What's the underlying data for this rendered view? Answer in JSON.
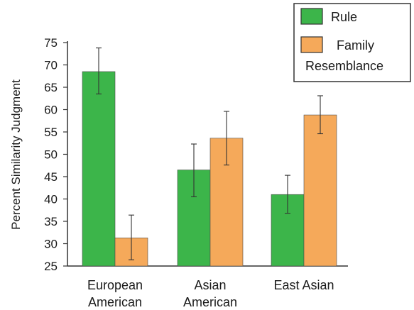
{
  "chart_data": {
    "type": "bar",
    "title": "",
    "xlabel": "",
    "ylabel": "Percent Similarity Judgment",
    "ylim": [
      25,
      75
    ],
    "yticks": [
      25,
      30,
      35,
      40,
      45,
      50,
      55,
      60,
      65,
      70,
      75
    ],
    "categories": [
      [
        "European",
        "American"
      ],
      [
        "Asian",
        "American"
      ],
      [
        "East Asian"
      ]
    ],
    "series": [
      {
        "name": "Rule",
        "legend_lines": [
          "Rule"
        ],
        "color": "#3cb54a",
        "values": [
          68.5,
          46.5,
          41.0
        ],
        "error": [
          [
            63.5,
            73.8
          ],
          [
            40.5,
            52.3
          ],
          [
            36.8,
            45.3
          ]
        ]
      },
      {
        "name": "Family Resemblance",
        "legend_lines": [
          "Family",
          "Resemblance"
        ],
        "color": "#f5a95a",
        "values": [
          31.3,
          53.6,
          58.8
        ],
        "error": [
          [
            26.4,
            36.4
          ],
          [
            47.6,
            59.6
          ],
          [
            54.6,
            63.1
          ]
        ]
      }
    ],
    "grid": false,
    "error_bars": true,
    "legend_position": "top-right"
  }
}
